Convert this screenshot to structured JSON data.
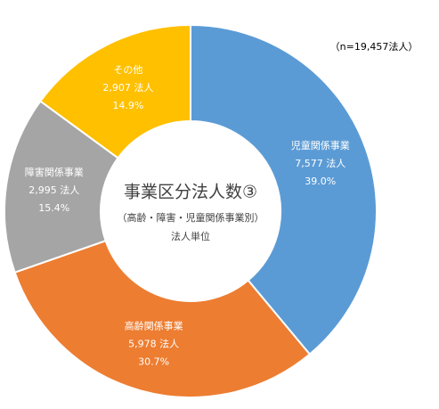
{
  "chart_data": {
    "type": "donut",
    "title": "事業区分法人数③",
    "subtitle": "（高齢・障害・児童関係事業別）",
    "caption": "法人単位",
    "note": "（n=19,457法人）",
    "categories": [
      "児童関係事業",
      "高齢関係事業",
      "障害関係事業",
      "その他"
    ],
    "values": [
      7577,
      5978,
      2995,
      2907
    ],
    "value_labels": [
      "7,577 法人",
      "5,978 法人",
      "2,995 法人",
      "2,907 法人"
    ],
    "percents": [
      39.0,
      30.7,
      15.4,
      14.9
    ],
    "percent_labels": [
      "39.0%",
      "30.7%",
      "15.4%",
      "14.9%"
    ],
    "colors": [
      "#5b9bd5",
      "#ed7d31",
      "#a5a5a5",
      "#ffc000"
    ]
  }
}
